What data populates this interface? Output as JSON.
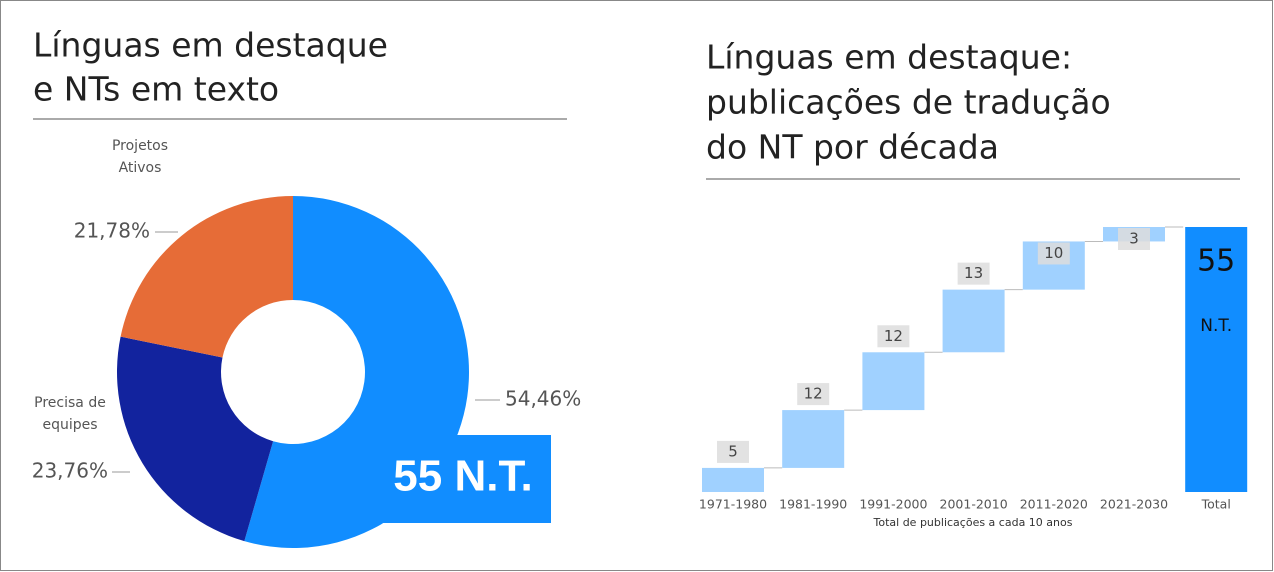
{
  "chart_data": [
    {
      "type": "donut",
      "title": [
        "Línguas em destaque",
        "e NTs em texto"
      ],
      "categories": [
        null,
        "Precisa de equipes",
        "Projetos Ativos"
      ],
      "values": [
        54.46,
        23.76,
        21.78
      ],
      "value_labels": [
        "54,46%",
        "23,76%",
        "21,78%"
      ],
      "colors": [
        "#118dff",
        "#12239e",
        "#e66c37"
      ],
      "annotation": "55 N.T."
    },
    {
      "type": "waterfall",
      "title": [
        "Línguas em destaque:",
        "publicações de tradução",
        "do NT por década"
      ],
      "categories": [
        "1971-1980",
        "1981-1990",
        "1991-2000",
        "2001-2010",
        "2011-2020",
        "2021-2030"
      ],
      "values": [
        5,
        12,
        12,
        13,
        10,
        3
      ],
      "total_label": "Total",
      "total": 55,
      "total_annotation": "N.T.",
      "x_label": "Total de publicações a cada 10 anos",
      "ylim": [
        0,
        55
      ],
      "color": "#a0d1ff",
      "total_color": "#118dff"
    }
  ]
}
